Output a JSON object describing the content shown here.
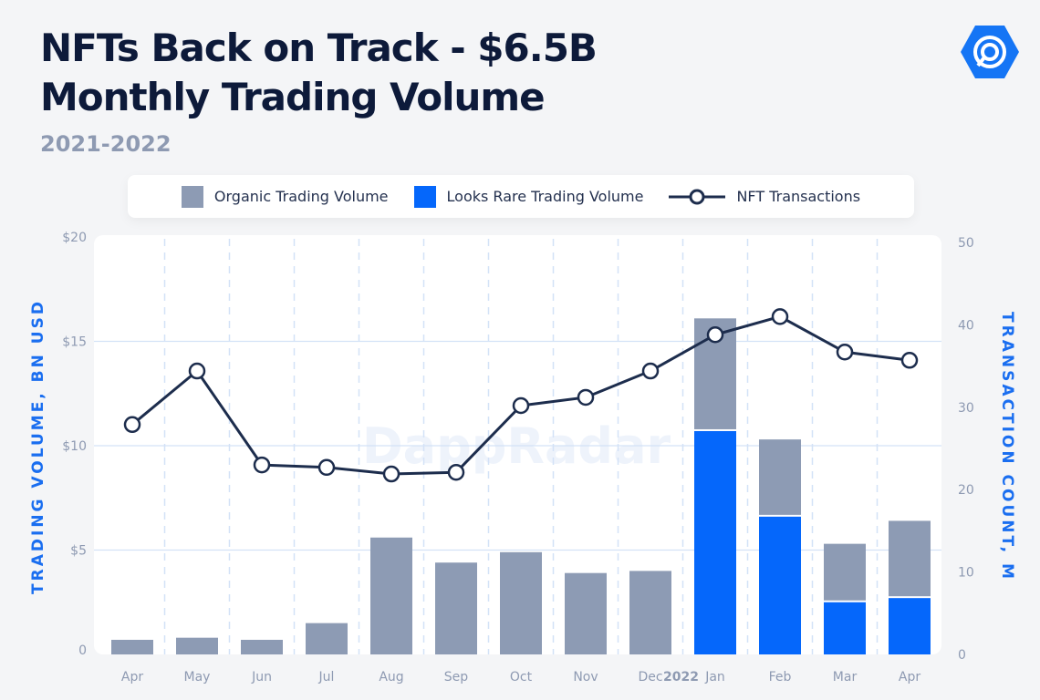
{
  "title_line1": "NFTs Back on Track - $6.5B",
  "title_line2": "Monthly Trading Volume",
  "subtitle": "2021-2022",
  "logo_icon": "dappradar-logo-icon",
  "watermark": "DappRadar",
  "colors": {
    "organic": "#8d9bb4",
    "looksrare": "#0567fb",
    "line": "#1d2d4d",
    "axis_title": "#1a6ef0",
    "grid": "#d3e2f7"
  },
  "chart_data": {
    "type": "bar",
    "stacked": true,
    "categories": [
      "Apr",
      "May",
      "Jun",
      "Jul",
      "Aug",
      "Sep",
      "Oct",
      "Nov",
      "Dec",
      "Jan",
      "Feb",
      "Mar",
      "Apr"
    ],
    "year_marker": {
      "label": "2022",
      "before_category": "Jan"
    },
    "series": [
      {
        "name": "Organic Trading Volume",
        "type": "bar",
        "axis": "left",
        "values": [
          0.7,
          0.8,
          0.7,
          1.5,
          5.6,
          4.4,
          4.9,
          3.9,
          4.0,
          5.4,
          3.7,
          2.8,
          3.7
        ]
      },
      {
        "name": "Looks Rare Trading Volume",
        "type": "bar",
        "axis": "left",
        "values": [
          0,
          0,
          0,
          0,
          0,
          0,
          0,
          0,
          0,
          10.7,
          6.6,
          2.5,
          2.7
        ]
      },
      {
        "name": "NFT Transactions",
        "type": "line",
        "axis": "right",
        "values": [
          27.9,
          34.4,
          23.0,
          22.7,
          21.9,
          22.1,
          30.2,
          31.2,
          34.4,
          38.8,
          41.0,
          36.7,
          35.7
        ]
      }
    ],
    "ylabel": "TRADING VOLUME, BN USD",
    "ylim": [
      0,
      20
    ],
    "yticks": [
      "0",
      "$5",
      "$10",
      "$15",
      "$20"
    ],
    "ylabel_right": "TRANSACTION COUNT, M",
    "ylim_right": [
      0,
      50
    ],
    "yticks_right": [
      "0",
      "10",
      "20",
      "30",
      "40",
      "50"
    ],
    "grid": true,
    "legend": "top"
  }
}
